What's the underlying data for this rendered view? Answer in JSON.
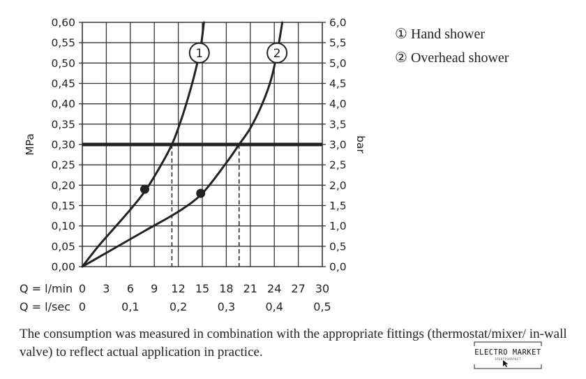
{
  "chart_data": {
    "type": "line",
    "title": "",
    "y_axis_left": {
      "label": "MPa",
      "range": [
        0,
        0.6
      ],
      "ticks": [
        "0,00",
        "0,05",
        "0,10",
        "0,15",
        "0,20",
        "0,25",
        "0,30",
        "0,35",
        "0,40",
        "0,45",
        "0,50",
        "0,55",
        "0,60"
      ]
    },
    "y_axis_right": {
      "label": "bar",
      "range": [
        0,
        6
      ],
      "ticks": [
        "0,0",
        "0,5",
        "1,0",
        "1,5",
        "2,0",
        "2,5",
        "3,0",
        "3,5",
        "4,0",
        "4,5",
        "5,0",
        "5,5",
        "6,0"
      ]
    },
    "x_axis_lmin": {
      "label": "Q = l/min",
      "range": [
        0,
        30
      ],
      "ticks": [
        "0",
        "3",
        "6",
        "9",
        "12",
        "15",
        "18",
        "21",
        "24",
        "27",
        "30"
      ]
    },
    "x_axis_lsec": {
      "label": "Q = l/sec",
      "ticks": [
        "0",
        "0,1",
        "0,2",
        "0,3",
        "0,4",
        "0,5"
      ]
    },
    "grid": true,
    "reference_line": {
      "y": 0.3
    },
    "series": [
      {
        "name": "Hand shower",
        "marker_label": "1",
        "x": [
          0,
          2,
          4,
          6,
          8,
          10,
          11.2,
          12,
          13,
          14,
          14.8,
          15.2
        ],
        "y": [
          0,
          0.05,
          0.095,
          0.14,
          0.19,
          0.255,
          0.3,
          0.34,
          0.4,
          0.47,
          0.54,
          0.6
        ],
        "dot": {
          "x": 7.8,
          "y": 0.19
        },
        "flow_at_reference": 11.2
      },
      {
        "name": "Overhead shower",
        "marker_label": "2",
        "x": [
          0,
          4,
          8,
          12,
          15,
          18,
          19.6,
          21,
          22.5,
          23.6,
          24.4,
          25
        ],
        "y": [
          0,
          0.045,
          0.09,
          0.135,
          0.18,
          0.255,
          0.3,
          0.34,
          0.4,
          0.46,
          0.53,
          0.6
        ],
        "dot": {
          "x": 14.8,
          "y": 0.18
        },
        "flow_at_reference": 19.6
      }
    ]
  },
  "legend": [
    {
      "symbol": "①",
      "label": "Hand shower"
    },
    {
      "symbol": "②",
      "label": "Overhead shower"
    }
  ],
  "footnote": "The consumption was measured in combination with the appropriate fittings (thermostat/mixer/ in-wall valve) to reflect actual application in practice.",
  "watermark": {
    "text": "ELECTRO MARKET",
    "subtext": "ЭЛЕКТРОМАРКЕТ"
  },
  "colors": {
    "ink": "#222222",
    "grid": "#333333"
  }
}
